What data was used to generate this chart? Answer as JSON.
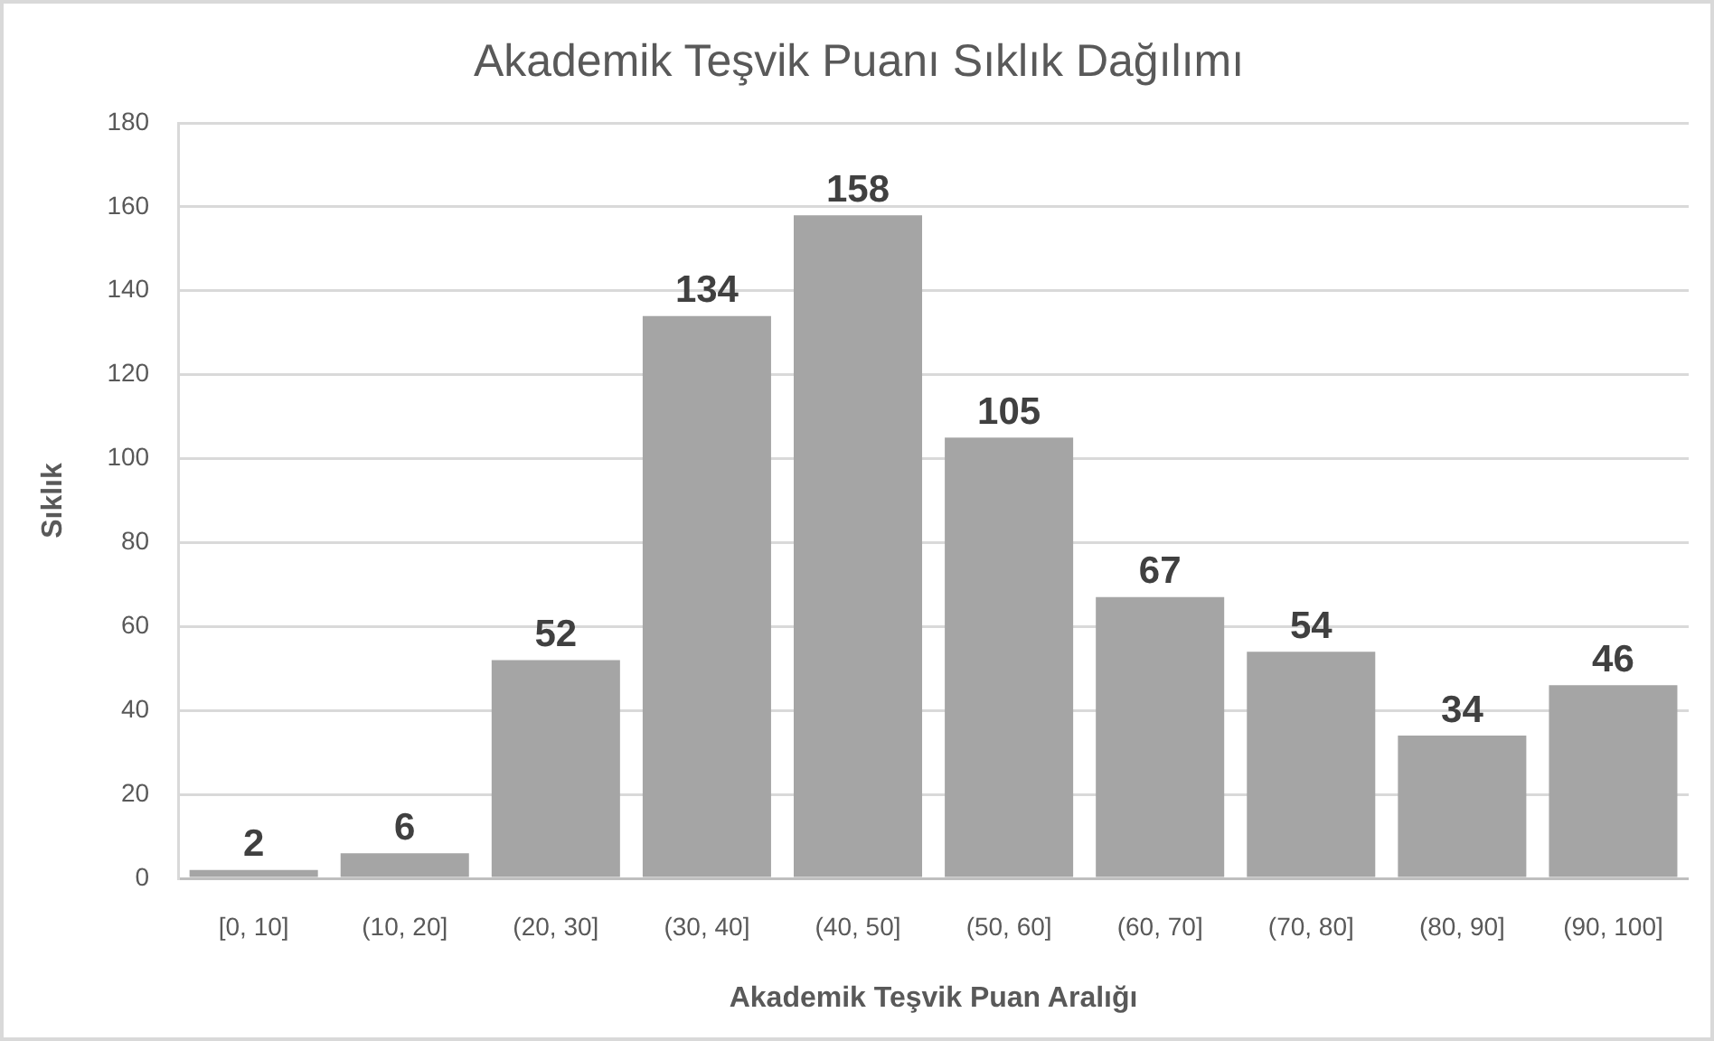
{
  "chart_data": {
    "type": "bar",
    "title": "Akademik Teşvik Puanı Sıklık Dağılımı",
    "xlabel": "Akademik Teşvik Puan Aralığı",
    "ylabel": "Sıklık",
    "categories": [
      "[0, 10]",
      "(10, 20]",
      "(20, 30]",
      "(30, 40]",
      "(40, 50]",
      "(50, 60]",
      "(60, 70]",
      "(70, 80]",
      "(80, 90]",
      "(90, 100]"
    ],
    "values": [
      2,
      6,
      52,
      134,
      158,
      105,
      67,
      54,
      34,
      46
    ],
    "color": "#a5a5a5",
    "ylim": [
      0,
      180
    ],
    "yticks": [
      0,
      20,
      40,
      60,
      80,
      100,
      120,
      140,
      160,
      180
    ],
    "grid": "y",
    "data_labels": true
  }
}
